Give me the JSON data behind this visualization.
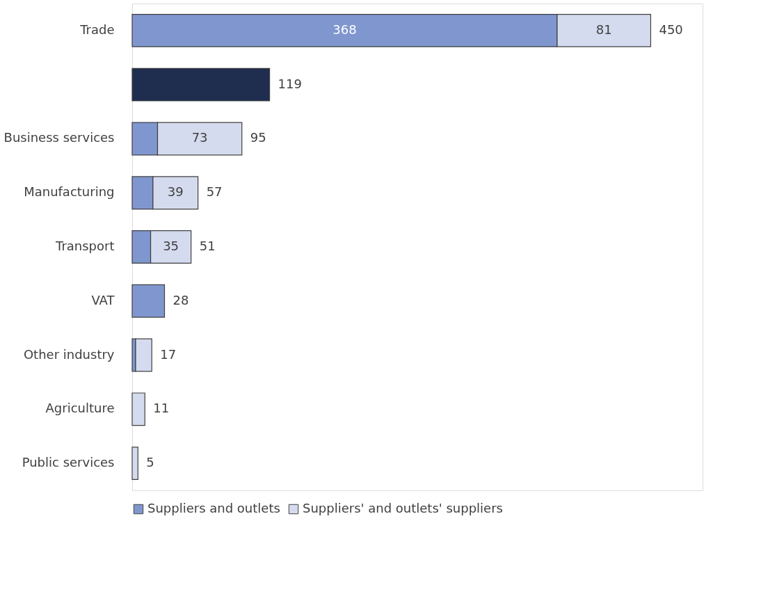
{
  "chart_data": {
    "type": "bar",
    "orientation": "horizontal",
    "stacked": true,
    "legend": "bottom",
    "categories": [
      "Trade",
      null,
      "Business services",
      "Manufacturing",
      "Transport",
      "VAT",
      "Other industry",
      "Agriculture",
      "Public services"
    ],
    "series": [
      {
        "color": "#1f2d4f",
        "values": [
          null,
          119,
          null,
          null,
          null,
          null,
          null,
          null,
          null
        ]
      },
      {
        "name": "Suppliers and outlets",
        "color": "#7f96cf",
        "values": [
          368,
          null,
          22,
          18,
          16,
          28,
          3,
          null,
          null
        ],
        "value_labels": [
          "368",
          null,
          null,
          null,
          null,
          null,
          null,
          null,
          null
        ]
      },
      {
        "name": "Suppliers' and outlets' suppliers",
        "color": "#d5dbee",
        "values": [
          81,
          null,
          73,
          39,
          35,
          null,
          14,
          11,
          5
        ],
        "value_labels": [
          "81",
          null,
          "73",
          "39",
          "35",
          null,
          null,
          null,
          null
        ]
      }
    ],
    "totals": [
      "450",
      "119",
      "95",
      "57",
      "51",
      "28",
      "17",
      "11",
      "5"
    ]
  }
}
